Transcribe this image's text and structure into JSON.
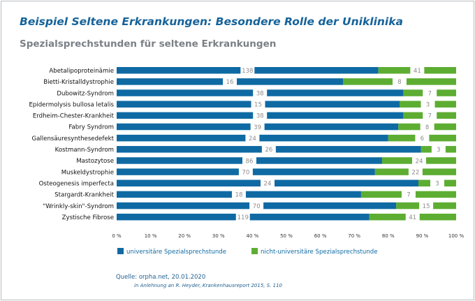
{
  "header": {
    "title": "Beispiel Seltene Erkrankungen: Besondere Rolle der Uniklinika",
    "subtitle": "Spezialsprechstunden für seltene Erkrankungen"
  },
  "colors": {
    "uni": "#0f6aa3",
    "nonuni": "#5dad32",
    "label": "#8c8c8c"
  },
  "chart_data": {
    "type": "bar",
    "orientation": "horizontal",
    "stacked": true,
    "normalized": true,
    "categories": [
      "Abetalipoproteinämie",
      "Bietti-Kristalldystrophie",
      "Dubowitz-Syndrom",
      "Epidermolysis bullosa letalis",
      "Erdheim-Chester-Krankheit",
      "Fabry Syndrom",
      "Gallensäuresynthesedefekt",
      "Kostmann-Syndrom",
      "Mastozytose",
      "Muskeldystrophie",
      "Osteogenesis imperfecta",
      "Stargardt-Krankheit",
      "\"Wrinkly-skin\"-Syndrom",
      "Zystische Fibrose"
    ],
    "series": [
      {
        "name": "universitäre Spezialsprechstunde",
        "values": [
          138,
          16,
          38,
          15,
          38,
          39,
          24,
          26,
          86,
          70,
          24,
          18,
          70,
          119
        ]
      },
      {
        "name": "nicht-universitäre Spezialsprechstunde",
        "values": [
          41,
          8,
          7,
          3,
          7,
          8,
          6,
          3,
          24,
          22,
          3,
          7,
          15,
          41
        ]
      }
    ],
    "xlim": [
      0,
      100
    ],
    "x_ticks": [
      "0 %",
      "10 %",
      "20 %",
      "30 %",
      "40 %",
      "50 %",
      "60 %",
      "70 %",
      "80 %",
      "90 %",
      "100 %"
    ],
    "grid": false,
    "legend_position": "bottom"
  },
  "source": {
    "line1": "Quelle: orpha.net, 20.01.2020",
    "line2": "in Anlehnung an R. Heyder, Krankenhausreport 2015, S. 110"
  }
}
